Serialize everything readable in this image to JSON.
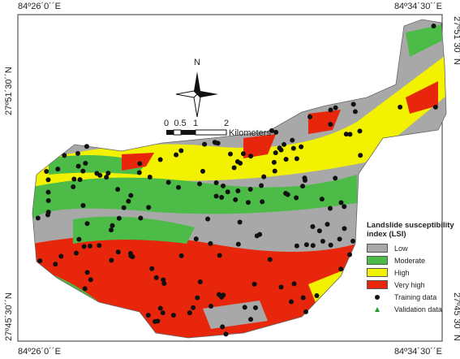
{
  "coordinates": {
    "top_left": "84º26´0´´E",
    "top_right": "84º34´30´´E",
    "bottom_left": "84º26´0´´E",
    "bottom_right": "84º34´30´´E",
    "left_top": "27º51´30´´N",
    "left_bottom": "27º45´30´´N",
    "right_top": "27º51´30´´N",
    "right_bottom": "27º45´30´´N"
  },
  "north_arrow": "N",
  "scale_bar": {
    "ticks": [
      "0",
      "0.5",
      "1",
      "2"
    ],
    "unit": "Kilometers"
  },
  "legend": {
    "title": "Landslide susceptibility index (LSI)",
    "classes": [
      {
        "label": "Low",
        "color": "#a8a8a8"
      },
      {
        "label": "Moderate",
        "color": "#4cbb48"
      },
      {
        "label": "High",
        "color": "#f2f200"
      },
      {
        "label": "Very high",
        "color": "#e8260c"
      }
    ],
    "points": [
      {
        "label": "Training data",
        "color": "#111111",
        "shape": "circle"
      },
      {
        "label": "Validation data",
        "color": "#1f9a2a",
        "shape": "triangle"
      }
    ]
  }
}
